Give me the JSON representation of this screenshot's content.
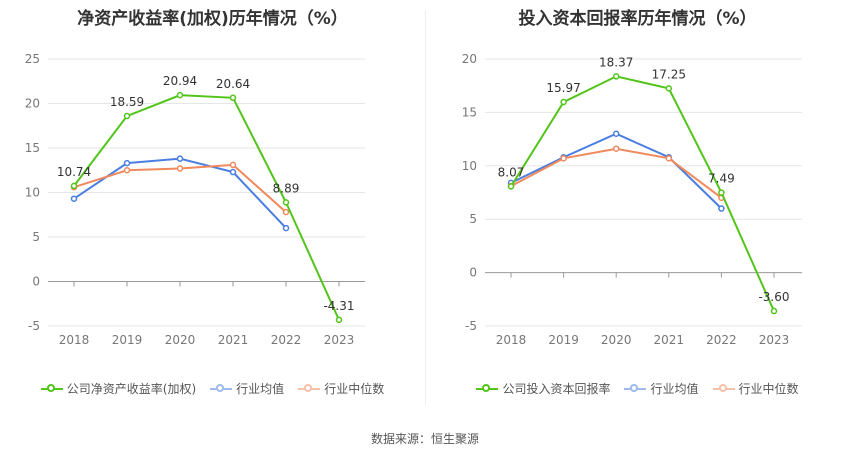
{
  "chart_data": [
    {
      "type": "line",
      "title": "净资产收益率(加权)历年情况（%）",
      "categories": [
        "2018",
        "2019",
        "2020",
        "2021",
        "2022",
        "2023"
      ],
      "ylim": [
        -5,
        25
      ],
      "yticks": [
        -5,
        0,
        5,
        10,
        15,
        20,
        25
      ],
      "grid": true,
      "legend_position": "bottom",
      "series": [
        {
          "name": "公司净资产收益率(加权)",
          "color": "#52c41a",
          "values": [
            10.74,
            18.59,
            20.94,
            20.64,
            8.89,
            -4.31
          ],
          "labels": [
            "10.74",
            "18.59",
            "20.94",
            "20.64",
            "8.89",
            "-4.31"
          ]
        },
        {
          "name": "行业均值",
          "color": "#4a7ee0",
          "values": [
            9.3,
            13.3,
            13.8,
            12.3,
            6.0,
            null
          ]
        },
        {
          "name": "行业中位数",
          "color": "#f08a5d",
          "values": [
            10.6,
            12.5,
            12.7,
            13.1,
            7.8,
            null
          ]
        }
      ]
    },
    {
      "type": "line",
      "title": "投入资本回报率历年情况（%）",
      "categories": [
        "2018",
        "2019",
        "2020",
        "2021",
        "2022",
        "2023"
      ],
      "ylim": [
        -5,
        20
      ],
      "yticks": [
        -5,
        0,
        5,
        10,
        15,
        20
      ],
      "grid": true,
      "legend_position": "bottom",
      "series": [
        {
          "name": "公司投入资本回报率",
          "color": "#52c41a",
          "values": [
            8.07,
            15.97,
            18.37,
            17.25,
            7.49,
            -3.6
          ],
          "labels": [
            "8.07",
            "15.97",
            "18.37",
            "17.25",
            "7.49",
            "-3.60"
          ]
        },
        {
          "name": "行业均值",
          "color": "#4a7ee0",
          "values": [
            8.4,
            10.8,
            13.0,
            10.8,
            6.0,
            null
          ]
        },
        {
          "name": "行业中位数",
          "color": "#f08a5d",
          "values": [
            8.1,
            10.7,
            11.6,
            10.7,
            7.0,
            null
          ]
        }
      ]
    }
  ],
  "footer": {
    "source": "数据来源：恒生聚源"
  }
}
